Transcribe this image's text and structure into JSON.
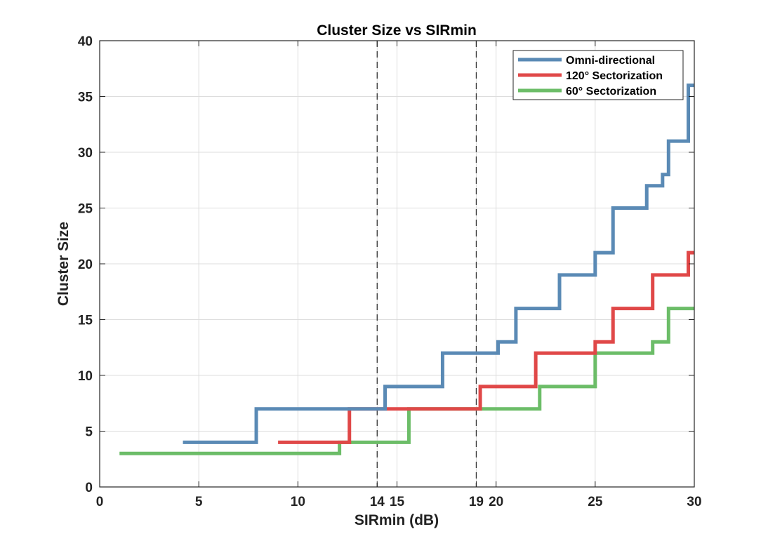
{
  "chart_data": {
    "type": "line",
    "step": true,
    "title": "Cluster Size vs SIRmin",
    "xlabel": "SIRmin (dB)",
    "ylabel": "Cluster Size",
    "xlim": [
      0,
      30
    ],
    "ylim": [
      0,
      40
    ],
    "xticks": [
      0,
      5,
      10,
      14,
      15,
      19,
      20,
      25,
      30
    ],
    "yticks": [
      0,
      5,
      10,
      15,
      20,
      25,
      30,
      35,
      40
    ],
    "grid": true,
    "legend_position": "top-right",
    "vlines": [
      14,
      19
    ],
    "series": [
      {
        "name": "Omni-directional",
        "color": "#5a8ab5",
        "x": [
          4.2,
          7.9,
          14.4,
          17.3,
          20.1,
          21,
          23.2,
          25,
          25.9,
          27.6,
          28.4,
          28.7,
          29.7,
          30
        ],
        "y": [
          4,
          7,
          9,
          12,
          13,
          16,
          19,
          21,
          25,
          27,
          28,
          31,
          36,
          36
        ]
      },
      {
        "name": "120° Sectorization",
        "color": "#e04848",
        "x": [
          9,
          12.6,
          19.2,
          22,
          25,
          25.9,
          27.9,
          29.7,
          30
        ],
        "y": [
          4,
          7,
          9,
          12,
          13,
          16,
          19,
          21,
          21
        ]
      },
      {
        "name": "60° Sectorization",
        "color": "#6cbd68",
        "x": [
          1,
          12.1,
          15.6,
          22.2,
          25,
          27.9,
          28.7,
          30
        ],
        "y": [
          3,
          4,
          7,
          9,
          12,
          13,
          16,
          16
        ]
      }
    ]
  }
}
